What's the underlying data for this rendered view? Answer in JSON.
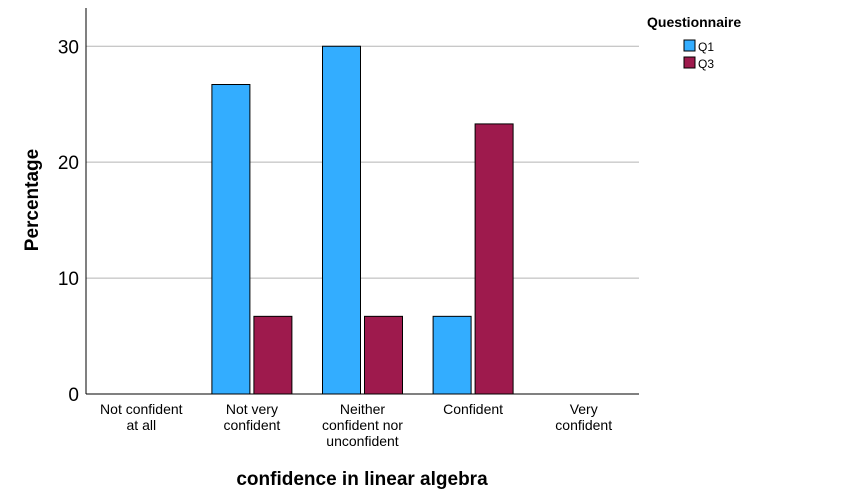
{
  "chart_data": {
    "type": "bar",
    "categories": [
      [
        "Not confident",
        "at all"
      ],
      [
        "Not very",
        "confident"
      ],
      [
        "Neither",
        "confident nor",
        "unconfident"
      ],
      [
        "Confident"
      ],
      [
        "Very",
        "confident"
      ]
    ],
    "series": [
      {
        "name": "Q1",
        "color": "#33adff",
        "values": [
          0,
          26.7,
          30.0,
          6.7,
          0
        ]
      },
      {
        "name": "Q3",
        "color": "#9e1a4d",
        "values": [
          0,
          6.7,
          6.7,
          23.3,
          0
        ]
      }
    ],
    "xlabel": "confidence in linear algebra",
    "ylabel": "Percentage",
    "ylim": [
      0,
      33.3
    ],
    "yticks": [
      0,
      10,
      20,
      30
    ],
    "grid": true,
    "legend": {
      "title": "Questionnaire",
      "position": "top-right"
    }
  }
}
